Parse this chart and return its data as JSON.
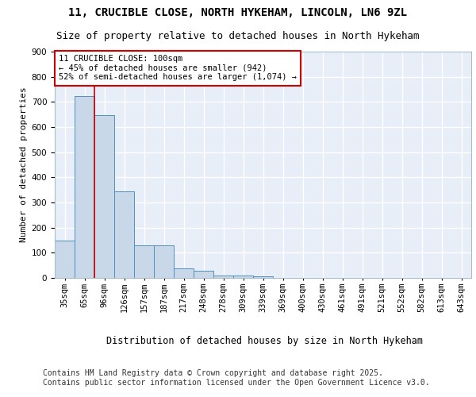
{
  "title_line1": "11, CRUCIBLE CLOSE, NORTH HYKEHAM, LINCOLN, LN6 9ZL",
  "title_line2": "Size of property relative to detached houses in North Hykeham",
  "xlabel": "Distribution of detached houses by size in North Hykeham",
  "ylabel": "Number of detached properties",
  "footer": "Contains HM Land Registry data © Crown copyright and database right 2025.\nContains public sector information licensed under the Open Government Licence v3.0.",
  "categories": [
    "35sqm",
    "65sqm",
    "96sqm",
    "126sqm",
    "157sqm",
    "187sqm",
    "217sqm",
    "248sqm",
    "278sqm",
    "309sqm",
    "339sqm",
    "369sqm",
    "400sqm",
    "430sqm",
    "461sqm",
    "491sqm",
    "521sqm",
    "552sqm",
    "582sqm",
    "613sqm",
    "643sqm"
  ],
  "values": [
    150,
    722,
    648,
    344,
    130,
    130,
    38,
    30,
    10,
    8,
    5,
    0,
    0,
    0,
    0,
    0,
    0,
    0,
    0,
    0,
    0
  ],
  "bar_color": "#c8d8e8",
  "bar_edgecolor": "#5090c0",
  "background_color": "#e8eef8",
  "grid_color": "#ffffff",
  "annotation_box_text": "11 CRUCIBLE CLOSE: 100sqm\n← 45% of detached houses are smaller (942)\n52% of semi-detached houses are larger (1,074) →",
  "annotation_box_color": "#cc0000",
  "vline_color": "#cc0000",
  "vline_x_pos": 1.5,
  "ylim": [
    0,
    900
  ],
  "yticks": [
    0,
    100,
    200,
    300,
    400,
    500,
    600,
    700,
    800,
    900
  ],
  "title_fontsize": 10,
  "subtitle_fontsize": 9,
  "axis_label_fontsize": 8,
  "tick_fontsize": 7.5,
  "footer_fontsize": 7
}
